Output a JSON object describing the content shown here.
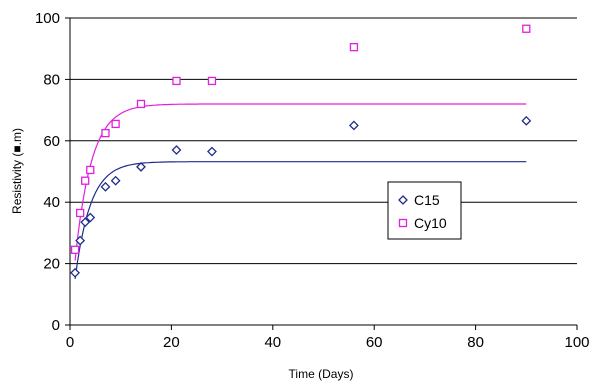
{
  "chart_data": {
    "type": "scatter",
    "xlabel": "Time (Days)",
    "ylabel": "Resistivity (■.m)",
    "xlim": [
      0,
      100
    ],
    "ylim": [
      0,
      100
    ],
    "xticks": [
      0,
      20,
      40,
      60,
      80,
      100
    ],
    "yticks": [
      0,
      20,
      40,
      60,
      80,
      100
    ],
    "grid": "horizontal",
    "legend_position": "right-center",
    "series": [
      {
        "name": "C15",
        "marker": "diamond",
        "color": "#1f2d8a",
        "x": [
          1,
          2,
          3,
          4,
          7,
          9,
          14,
          21,
          28,
          56,
          90
        ],
        "y": [
          17,
          27.5,
          33.5,
          35,
          45,
          47,
          51.5,
          57,
          56.5,
          65,
          66.5
        ],
        "fit": {
          "asymptote": 53.2,
          "start": 15,
          "rate": 0.33,
          "x_range": [
            1,
            90
          ]
        }
      },
      {
        "name": "Cy10",
        "marker": "square",
        "color": "#e020e0",
        "x": [
          1,
          2,
          3,
          4,
          7,
          9,
          14,
          21,
          28,
          56,
          90
        ],
        "y": [
          24.5,
          36.5,
          47,
          50.5,
          62.5,
          65.5,
          72,
          79.5,
          79.5,
          90.5,
          96.5
        ],
        "fit": {
          "asymptote": 72,
          "start": 21,
          "rate": 0.31,
          "x_range": [
            1,
            90
          ]
        }
      }
    ]
  }
}
